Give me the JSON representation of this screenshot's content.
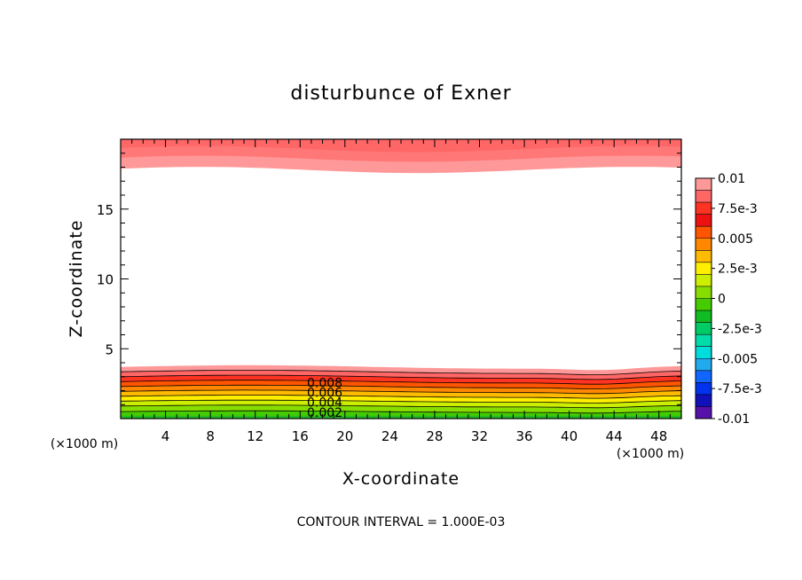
{
  "chart_data": {
    "type": "contour",
    "title": "disturbunce of Exner",
    "xlabel": "X-coordinate",
    "ylabel": "Z-coordinate",
    "x_unit": "(×1000 m)",
    "y_unit": "(×1000 m)",
    "xlim": [
      0,
      50
    ],
    "ylim": [
      0,
      20
    ],
    "x_ticks": [
      "4",
      "8",
      "12",
      "16",
      "20",
      "24",
      "28",
      "32",
      "36",
      "40",
      "44",
      "48"
    ],
    "x_tick_values": [
      4,
      8,
      12,
      16,
      20,
      24,
      28,
      32,
      36,
      40,
      44,
      48
    ],
    "y_ticks": [
      "5",
      "10",
      "15"
    ],
    "y_tick_values": [
      5,
      10,
      15
    ],
    "contour_interval_note": "CONTOUR INTERVAL = 1.000E-03",
    "contour_labels": [
      "0.008",
      "0.006",
      "0.004",
      "0.002"
    ],
    "colorbar": {
      "labels": [
        "0.01",
        "7.5e-3",
        "0.005",
        "2.5e-3",
        "0",
        "-2.5e-3",
        "-0.005",
        "-7.5e-3",
        "-0.01"
      ],
      "colors": [
        "#ff9999",
        "#ff6666",
        "#ff3322",
        "#ee1111",
        "#ff5500",
        "#ff8800",
        "#ffbb00",
        "#ffee00",
        "#ccee00",
        "#88dd00",
        "#44cc00",
        "#11bb22",
        "#00cc66",
        "#00ddaa",
        "#00dddd",
        "#22aaee",
        "#1166ff",
        "#0033ee",
        "#1111bb",
        "#5511aa"
      ]
    },
    "bottom_layer_levels": [
      {
        "level": 0.01,
        "color": "#ff9999",
        "top": 3.7
      },
      {
        "level": 0.009,
        "color": "#ff6666",
        "top": 3.35
      },
      {
        "level": 0.008,
        "color": "#ff3322",
        "top": 3.0
      },
      {
        "level": 0.007,
        "color": "#ff5500",
        "top": 2.65
      },
      {
        "level": 0.006,
        "color": "#ff8800",
        "top": 2.3
      },
      {
        "level": 0.005,
        "color": "#ffbb00",
        "top": 1.95
      },
      {
        "level": 0.004,
        "color": "#ffee00",
        "top": 1.6
      },
      {
        "level": 0.003,
        "color": "#ccee00",
        "top": 1.25
      },
      {
        "level": 0.002,
        "color": "#88dd00",
        "top": 0.9
      },
      {
        "level": 0.001,
        "color": "#44cc00",
        "top": 0.5
      }
    ],
    "top_layer_levels": [
      {
        "level": 0.01,
        "color": "#ff9999",
        "bottom": 17.8
      },
      {
        "level": 0.011,
        "color": "#ff7777",
        "bottom": 18.6
      },
      {
        "level": 0.012,
        "color": "#ff6666",
        "bottom": 19.3
      }
    ]
  }
}
